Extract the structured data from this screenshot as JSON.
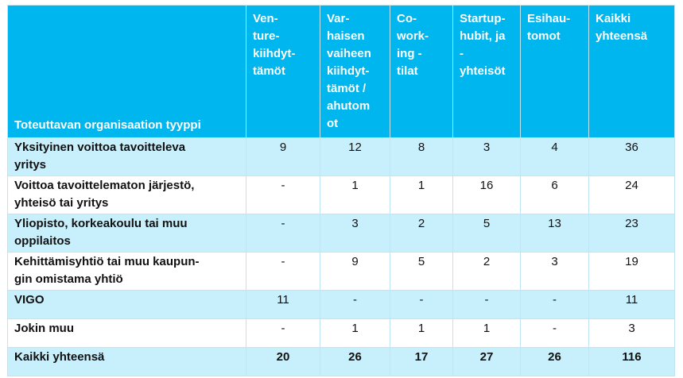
{
  "table": {
    "headers": [
      "Toteuttavan organisaation tyyppi",
      "Ven-\nture-\nkiihdyt-\ntämöt",
      "Var-\nhaisen\nvaiheen\nkiihdyt-\ntämöt /\nahutom\not",
      "Co-\nwork-\ning -\ntilat",
      "Startup-\nhubit, ja\n-\nyhteisöt",
      "Esihau-\ntomot",
      "Kaikki\nyhteensä"
    ],
    "rows": [
      {
        "label": "Yksityinen voittoa tavoitteleva\nyritys",
        "values": [
          "9",
          "12",
          "8",
          "3",
          "4",
          "36"
        ]
      },
      {
        "label": "Voittoa tavoittelematon järjestö,\nyhteisö tai yritys",
        "values": [
          "-",
          "1",
          "1",
          "16",
          "6",
          "24"
        ]
      },
      {
        "label": "Yliopisto, korkeakoulu tai muu\noppilaitos",
        "values": [
          "-",
          "3",
          "2",
          "5",
          "13",
          "23"
        ]
      },
      {
        "label": "Kehittämisyhtiö tai muu kaupun-\ngin omistama yhtiö",
        "values": [
          "-",
          "9",
          "5",
          "2",
          "3",
          "19"
        ]
      },
      {
        "label": "VIGO",
        "values": [
          "11",
          "-",
          "-",
          "-",
          "-",
          "11"
        ]
      },
      {
        "label": "Jokin muu",
        "values": [
          "-",
          "1",
          "1",
          "1",
          "-",
          "3"
        ]
      }
    ],
    "total": {
      "label": "Kaikki yhteensä",
      "values": [
        "20",
        "26",
        "17",
        "27",
        "26",
        "116"
      ]
    }
  },
  "colors": {
    "header_bg": "#00b6ef",
    "row_alt_bg": "#c8effc",
    "row_bg": "#ffffff"
  }
}
